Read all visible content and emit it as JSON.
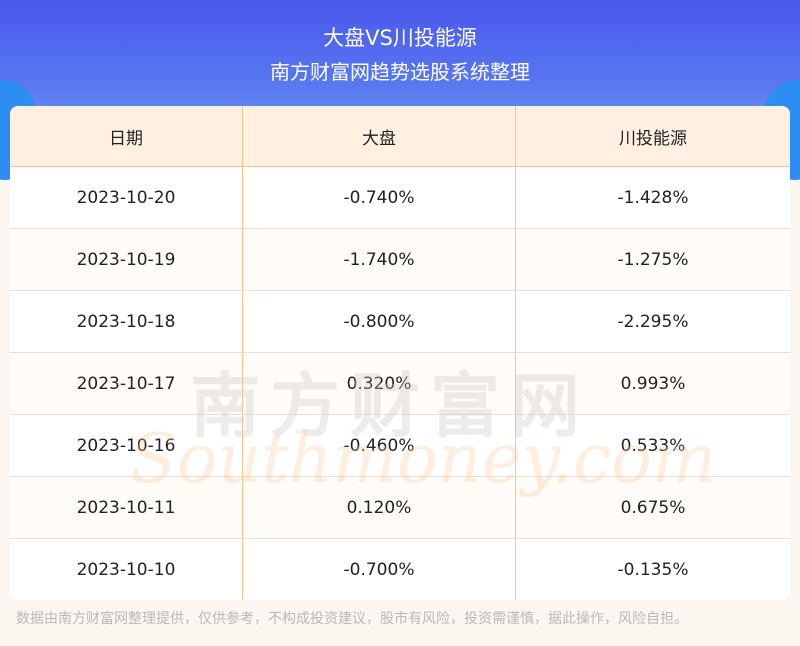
{
  "header": {
    "title": "大盘VS川投能源",
    "subtitle": "南方财富网趋势选股系统整理"
  },
  "table": {
    "columns": [
      "日期",
      "大盘",
      "川投能源"
    ],
    "rows": [
      [
        "2023-10-20",
        "-0.740%",
        "-1.428%"
      ],
      [
        "2023-10-19",
        "-1.740%",
        "-1.275%"
      ],
      [
        "2023-10-18",
        "-0.800%",
        "-2.295%"
      ],
      [
        "2023-10-17",
        "0.320%",
        "0.993%"
      ],
      [
        "2023-10-16",
        "-0.460%",
        "0.533%"
      ],
      [
        "2023-10-11",
        "0.120%",
        "0.675%"
      ],
      [
        "2023-10-10",
        "-0.700%",
        "-0.135%"
      ]
    ]
  },
  "watermark": {
    "cn": "南方财富网",
    "en": "Southmoney.com"
  },
  "footer": "数据由南方财富网整理提供，仅供参考，不构成投资建议，股市有风险，投资需谨慎，据此操作，风险自担。",
  "colors": {
    "header_bg": "#4a56ee",
    "table_head_bg": "#fff0e2",
    "divider": "#f5c38c"
  }
}
